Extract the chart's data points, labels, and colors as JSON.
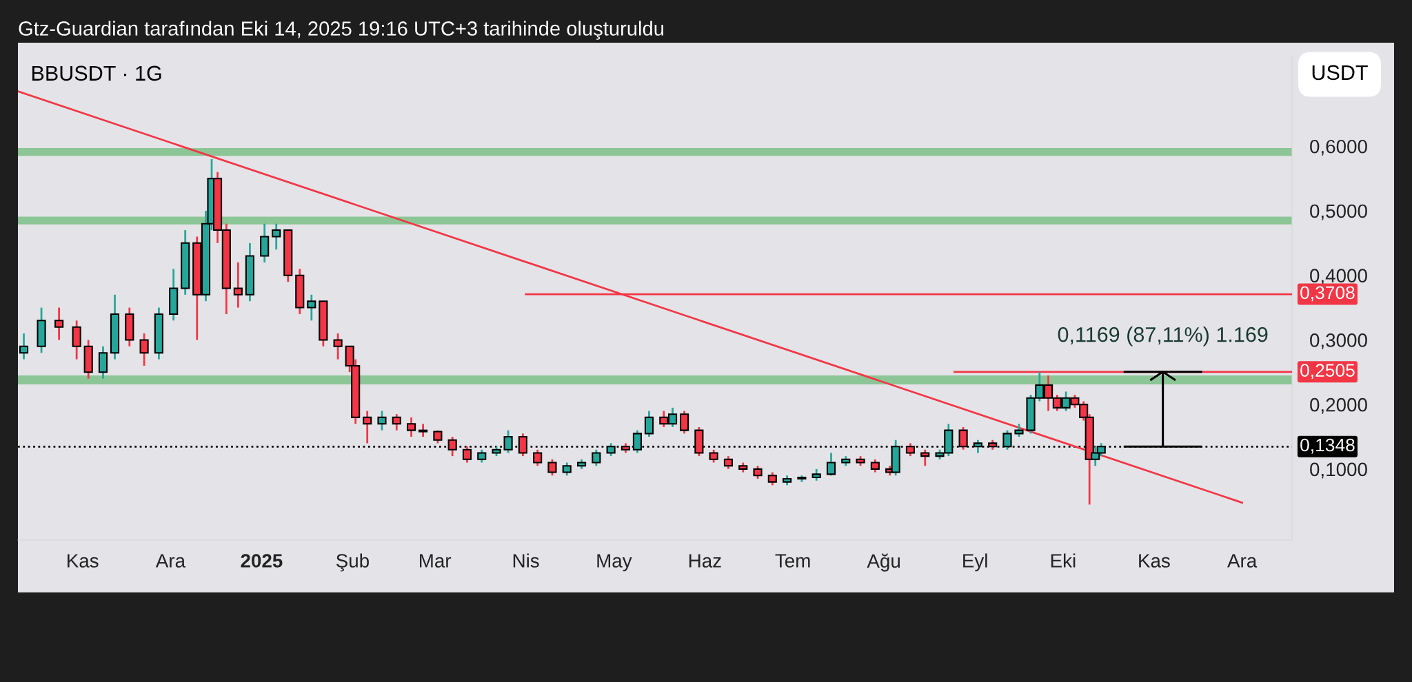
{
  "chart_data": {
    "type": "candlestick",
    "title": "BBUSDT · 1G",
    "annotations": [
      "Gtz-Guardian tarafından Eki 14, 2025 19:16 UTC+3 tarihinde oluşturuldu",
      "USDT",
      {
        "text": "0,1169 (87,11%) 1.169",
        "x": "2025-11-04",
        "y": 0.2505
      }
    ],
    "xlim": [
      "2024-10-10",
      "2025-12-18"
    ],
    "xticks": [
      {
        "value": "2024-11-01",
        "label": "Kas"
      },
      {
        "value": "2024-12-01",
        "label": "Ara"
      },
      {
        "value": "2025-01-01",
        "label": "2025"
      },
      {
        "value": "2025-02-01",
        "label": "Şub"
      },
      {
        "value": "2025-03-01",
        "label": "Mar"
      },
      {
        "value": "2025-04-01",
        "label": "Nis"
      },
      {
        "value": "2025-05-01",
        "label": "May"
      },
      {
        "value": "2025-06-01",
        "label": "Haz"
      },
      {
        "value": "2025-07-01",
        "label": "Tem"
      },
      {
        "value": "2025-08-01",
        "label": "Ağu"
      },
      {
        "value": "2025-09-01",
        "label": "Eyl"
      },
      {
        "value": "2025-10-01",
        "label": "Eki"
      },
      {
        "value": "2025-11-01",
        "label": "Kas"
      },
      {
        "value": "2025-12-01",
        "label": "Ara"
      }
    ],
    "ylim": [
      -0.01,
      0.74
    ],
    "yticks": [
      {
        "value": 0.1,
        "label": "0,1000"
      },
      {
        "value": 0.2,
        "label": "0,2000"
      },
      {
        "value": 0.3,
        "label": "0,3000"
      },
      {
        "value": 0.4,
        "label": "0,4000"
      },
      {
        "value": 0.5,
        "label": "0,5000"
      },
      {
        "value": 0.6,
        "label": "0,6000"
      }
    ],
    "grid": false,
    "legend": false,
    "color": "#000000",
    "x": [
      "2024-10-12",
      "2024-10-18",
      "2024-10-24",
      "2024-10-30",
      "2024-11-03",
      "2024-11-08",
      "2024-11-12",
      "2024-11-17",
      "2024-11-22",
      "2024-11-27",
      "2024-12-02",
      "2024-12-06",
      "2024-12-10",
      "2024-12-13",
      "2024-12-15",
      "2024-12-17",
      "2024-12-20",
      "2024-12-24",
      "2024-12-28",
      "2025-01-02",
      "2025-01-06",
      "2025-01-10",
      "2025-01-14",
      "2025-01-18",
      "2025-01-22",
      "2025-01-27",
      "2025-01-31",
      "2025-02-02",
      "2025-02-06",
      "2025-02-11",
      "2025-02-16",
      "2025-02-21",
      "2025-02-25",
      "2025-03-02",
      "2025-03-07",
      "2025-03-12",
      "2025-03-17",
      "2025-03-22",
      "2025-03-26",
      "2025-03-31",
      "2025-04-05",
      "2025-04-10",
      "2025-04-15",
      "2025-04-20",
      "2025-04-25",
      "2025-04-30",
      "2025-05-05",
      "2025-05-09",
      "2025-05-13",
      "2025-05-18",
      "2025-05-21",
      "2025-05-25",
      "2025-05-30",
      "2025-06-04",
      "2025-06-09",
      "2025-06-14",
      "2025-06-19",
      "2025-06-24",
      "2025-06-29",
      "2025-07-04",
      "2025-07-09",
      "2025-07-14",
      "2025-07-19",
      "2025-07-24",
      "2025-07-29",
      "2025-08-03",
      "2025-08-05",
      "2025-08-10",
      "2025-08-15",
      "2025-08-20",
      "2025-08-23",
      "2025-08-28",
      "2025-09-02",
      "2025-09-07",
      "2025-09-12",
      "2025-09-16",
      "2025-09-20",
      "2025-09-23",
      "2025-09-26",
      "2025-09-29",
      "2025-10-02",
      "2025-10-05",
      "2025-10-08",
      "2025-10-10",
      "2025-10-12",
      "2025-10-14"
    ],
    "ohlc": [
      [
        0.28,
        0.31,
        0.27,
        0.29
      ],
      [
        0.29,
        0.35,
        0.28,
        0.33
      ],
      [
        0.33,
        0.35,
        0.3,
        0.32
      ],
      [
        0.32,
        0.33,
        0.27,
        0.29
      ],
      [
        0.29,
        0.3,
        0.24,
        0.25
      ],
      [
        0.25,
        0.29,
        0.24,
        0.28
      ],
      [
        0.28,
        0.37,
        0.27,
        0.34
      ],
      [
        0.34,
        0.35,
        0.29,
        0.3
      ],
      [
        0.3,
        0.31,
        0.26,
        0.28
      ],
      [
        0.28,
        0.35,
        0.27,
        0.34
      ],
      [
        0.34,
        0.41,
        0.33,
        0.38
      ],
      [
        0.38,
        0.47,
        0.37,
        0.45
      ],
      [
        0.45,
        0.46,
        0.3,
        0.37
      ],
      [
        0.37,
        0.5,
        0.36,
        0.48
      ],
      [
        0.48,
        0.58,
        0.47,
        0.55
      ],
      [
        0.55,
        0.56,
        0.45,
        0.47
      ],
      [
        0.47,
        0.48,
        0.34,
        0.38
      ],
      [
        0.38,
        0.42,
        0.35,
        0.37
      ],
      [
        0.37,
        0.45,
        0.36,
        0.43
      ],
      [
        0.43,
        0.48,
        0.42,
        0.46
      ],
      [
        0.46,
        0.48,
        0.44,
        0.47
      ],
      [
        0.47,
        0.47,
        0.39,
        0.4
      ],
      [
        0.4,
        0.41,
        0.34,
        0.35
      ],
      [
        0.35,
        0.37,
        0.33,
        0.36
      ],
      [
        0.36,
        0.36,
        0.29,
        0.3
      ],
      [
        0.3,
        0.31,
        0.27,
        0.29
      ],
      [
        0.29,
        0.29,
        0.25,
        0.26
      ],
      [
        0.26,
        0.27,
        0.17,
        0.18
      ],
      [
        0.18,
        0.19,
        0.14,
        0.17
      ],
      [
        0.17,
        0.19,
        0.16,
        0.18
      ],
      [
        0.18,
        0.185,
        0.16,
        0.17
      ],
      [
        0.17,
        0.18,
        0.15,
        0.16
      ],
      [
        0.16,
        0.17,
        0.15,
        0.158
      ],
      [
        0.158,
        0.16,
        0.14,
        0.145
      ],
      [
        0.145,
        0.15,
        0.12,
        0.13
      ],
      [
        0.13,
        0.135,
        0.11,
        0.115
      ],
      [
        0.115,
        0.13,
        0.11,
        0.125
      ],
      [
        0.125,
        0.135,
        0.12,
        0.13
      ],
      [
        0.13,
        0.16,
        0.125,
        0.15
      ],
      [
        0.15,
        0.155,
        0.12,
        0.125
      ],
      [
        0.125,
        0.13,
        0.105,
        0.11
      ],
      [
        0.11,
        0.115,
        0.09,
        0.095
      ],
      [
        0.095,
        0.11,
        0.09,
        0.105
      ],
      [
        0.105,
        0.115,
        0.1,
        0.11
      ],
      [
        0.11,
        0.13,
        0.105,
        0.125
      ],
      [
        0.125,
        0.14,
        0.12,
        0.135
      ],
      [
        0.135,
        0.14,
        0.125,
        0.13
      ],
      [
        0.13,
        0.16,
        0.125,
        0.155
      ],
      [
        0.155,
        0.19,
        0.15,
        0.18
      ],
      [
        0.18,
        0.19,
        0.165,
        0.17
      ],
      [
        0.17,
        0.195,
        0.165,
        0.185
      ],
      [
        0.185,
        0.19,
        0.155,
        0.16
      ],
      [
        0.16,
        0.165,
        0.12,
        0.125
      ],
      [
        0.125,
        0.13,
        0.11,
        0.115
      ],
      [
        0.115,
        0.12,
        0.1,
        0.105
      ],
      [
        0.105,
        0.11,
        0.095,
        0.1
      ],
      [
        0.1,
        0.105,
        0.085,
        0.09
      ],
      [
        0.09,
        0.095,
        0.075,
        0.08
      ],
      [
        0.08,
        0.09,
        0.075,
        0.085
      ],
      [
        0.085,
        0.09,
        0.08,
        0.087
      ],
      [
        0.087,
        0.1,
        0.082,
        0.092
      ],
      [
        0.092,
        0.125,
        0.09,
        0.11
      ],
      [
        0.11,
        0.12,
        0.105,
        0.115
      ],
      [
        0.115,
        0.12,
        0.105,
        0.11
      ],
      [
        0.11,
        0.115,
        0.095,
        0.1
      ],
      [
        0.1,
        0.105,
        0.09,
        0.095
      ],
      [
        0.095,
        0.145,
        0.09,
        0.135
      ],
      [
        0.135,
        0.14,
        0.12,
        0.125
      ],
      [
        0.125,
        0.13,
        0.105,
        0.12
      ],
      [
        0.12,
        0.13,
        0.115,
        0.125
      ],
      [
        0.125,
        0.17,
        0.12,
        0.16
      ],
      [
        0.16,
        0.165,
        0.13,
        0.135
      ],
      [
        0.135,
        0.145,
        0.125,
        0.14
      ],
      [
        0.14,
        0.145,
        0.13,
        0.135
      ],
      [
        0.135,
        0.16,
        0.13,
        0.155
      ],
      [
        0.155,
        0.17,
        0.15,
        0.16
      ],
      [
        0.16,
        0.215,
        0.155,
        0.21
      ],
      [
        0.21,
        0.2505,
        0.205,
        0.23
      ],
      [
        0.23,
        0.245,
        0.19,
        0.21
      ],
      [
        0.21,
        0.215,
        0.19,
        0.195
      ],
      [
        0.195,
        0.22,
        0.19,
        0.21
      ],
      [
        0.21,
        0.215,
        0.195,
        0.2
      ],
      [
        0.2,
        0.205,
        0.175,
        0.18
      ],
      [
        0.18,
        0.185,
        0.045,
        0.115
      ],
      [
        0.115,
        0.135,
        0.105,
        0.125
      ],
      [
        0.125,
        0.14,
        0.12,
        0.1348
      ]
    ],
    "colors": [
      "#26a69a",
      "#26a69a",
      "#f23645",
      "#f23645",
      "#f23645",
      "#26a69a",
      "#26a69a",
      "#f23645",
      "#f23645",
      "#26a69a",
      "#26a69a",
      "#26a69a",
      "#f23645",
      "#26a69a",
      "#26a69a",
      "#f23645",
      "#f23645",
      "#f23645",
      "#26a69a",
      "#26a69a",
      "#26a69a",
      "#f23645",
      "#f23645",
      "#26a69a",
      "#f23645",
      "#f23645",
      "#f23645",
      "#f23645",
      "#f23645",
      "#26a69a",
      "#f23645",
      "#f23645",
      "#f23645",
      "#f23645",
      "#f23645",
      "#f23645",
      "#26a69a",
      "#26a69a",
      "#26a69a",
      "#f23645",
      "#f23645",
      "#f23645",
      "#26a69a",
      "#26a69a",
      "#26a69a",
      "#26a69a",
      "#f23645",
      "#26a69a",
      "#26a69a",
      "#f23645",
      "#26a69a",
      "#f23645",
      "#f23645",
      "#f23645",
      "#f23645",
      "#f23645",
      "#f23645",
      "#f23645",
      "#26a69a",
      "#26a69a",
      "#26a69a",
      "#26a69a",
      "#26a69a",
      "#f23645",
      "#f23645",
      "#f23645",
      "#26a69a",
      "#f23645",
      "#f23645",
      "#26a69a",
      "#26a69a",
      "#f23645",
      "#26a69a",
      "#f23645",
      "#26a69a",
      "#26a69a",
      "#26a69a",
      "#26a69a",
      "#f23645",
      "#f23645",
      "#26a69a",
      "#f23645",
      "#f23645",
      "#f23645",
      "#26a69a",
      "#26a69a"
    ],
    "series": [
      {
        "type": "line",
        "color": "#f23645",
        "x": [
          "2024-10-10",
          "2025-12-01"
        ],
        "values": [
          0.685,
          0.048
        ]
      },
      {
        "type": "line",
        "color": "#f23645",
        "x": [
          "2025-04-01",
          "2025-12-18"
        ],
        "values": [
          0.3708,
          0.3708
        ],
        "value_labels": [
          null,
          "0,3708"
        ]
      },
      {
        "type": "line",
        "color": "#f23645",
        "x": [
          "2025-08-25",
          "2025-12-18"
        ],
        "values": [
          0.2505,
          0.2505
        ],
        "value_labels": [
          null,
          "0,2505"
        ]
      }
    ],
    "ref_lines": [
      {
        "axis": "y",
        "value": 0.1348,
        "label": "0,1348",
        "color": "#000000",
        "line_style": "dotted"
      }
    ],
    "bands": [
      {
        "axis": "y",
        "from": 0.585,
        "to": 0.597,
        "color": "#8cc596"
      },
      {
        "axis": "y",
        "from": 0.479,
        "to": 0.491,
        "color": "#8cc596"
      },
      {
        "axis": "y",
        "from": 0.231,
        "to": 0.245,
        "color": "#8cc596"
      }
    ]
  }
}
